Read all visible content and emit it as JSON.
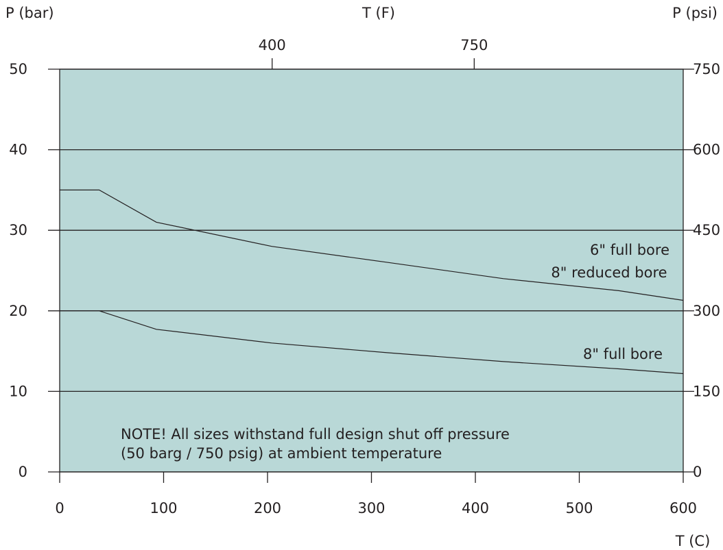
{
  "chart_data": {
    "type": "line",
    "title": "",
    "background_color": "#b9d8d7",
    "line_color": "#231f20",
    "grid": true,
    "axes": {
      "left": {
        "label": "P (bar)",
        "ylim": [
          0,
          50
        ],
        "ticks": [
          0,
          10,
          20,
          30,
          40,
          50
        ]
      },
      "right": {
        "label": "P (psi)",
        "ylim": [
          0,
          750
        ],
        "ticks": [
          0,
          150,
          300,
          450,
          600,
          750
        ]
      },
      "bottom": {
        "label": "T (C)",
        "xlim": [
          0,
          600
        ],
        "ticks": [
          0,
          100,
          200,
          300,
          400,
          500,
          600
        ]
      },
      "top": {
        "label": "T (F)",
        "ticks": [
          400,
          750
        ]
      }
    },
    "series": [
      {
        "name": "6\" full bore / 8\" reduced bore",
        "points": [
          [
            0,
            35
          ],
          [
            38,
            35
          ],
          [
            93,
            31
          ],
          [
            204,
            28
          ],
          [
            316,
            26
          ],
          [
            427,
            24
          ],
          [
            538,
            22.5
          ],
          [
            600,
            21.3
          ]
        ]
      },
      {
        "name": "8\" full bore",
        "points": [
          [
            0,
            20
          ],
          [
            38,
            20
          ],
          [
            93,
            17.7
          ],
          [
            204,
            16
          ],
          [
            316,
            14.8
          ],
          [
            427,
            13.7
          ],
          [
            538,
            12.8
          ],
          [
            600,
            12.2
          ]
        ]
      }
    ],
    "annotations": {
      "series1_line1": "6\" full bore",
      "series1_line2": "8\" reduced bore",
      "series2": "8\" full bore",
      "note_line1": "NOTE! All sizes withstand full design shut off pressure",
      "note_line2": "(50 barg / 750 psig) at ambient temperature"
    }
  }
}
